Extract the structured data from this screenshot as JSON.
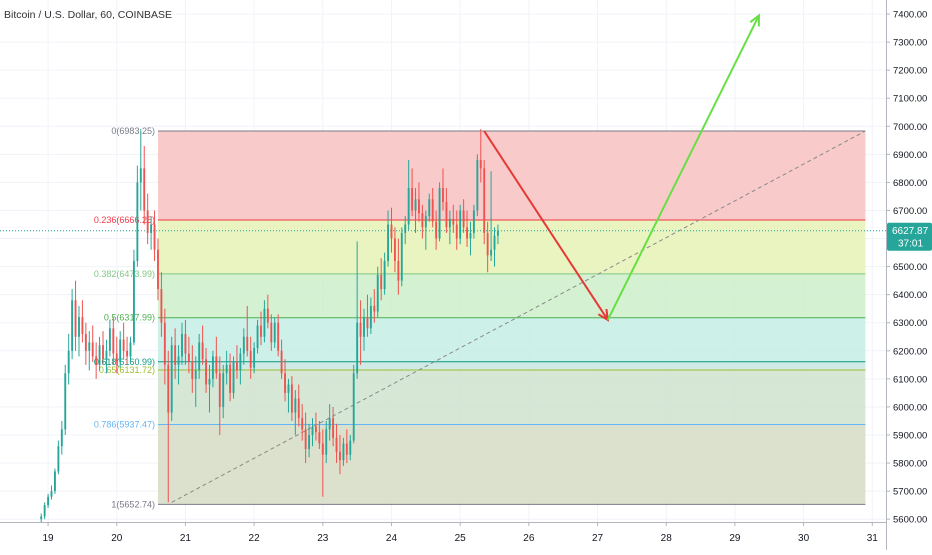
{
  "header": {
    "title": "Bitcoin / U.S. Dollar, 60, COINBASE"
  },
  "price_badge": {
    "value": "6627.87",
    "countdown": "37:01"
  },
  "chart_data": {
    "type": "candlestick",
    "title": "Bitcoin / U.S. Dollar, 60, COINBASE",
    "xlabel": "",
    "ylabel": "",
    "x_ticks": [
      "19",
      "20",
      "21",
      "22",
      "23",
      "24",
      "25",
      "26",
      "27",
      "28",
      "29",
      "30",
      "31"
    ],
    "y_ticks": [
      "5600.00",
      "5700.00",
      "5800.00",
      "5900.00",
      "6000.00",
      "6100.00",
      "6200.00",
      "6300.00",
      "6400.00",
      "6500.00",
      "6600.00",
      "6700.00",
      "6800.00",
      "6900.00",
      "7000.00",
      "7100.00",
      "7200.00",
      "7300.00",
      "7400.00"
    ],
    "ylim": [
      5590,
      7450
    ],
    "xlim": [
      18.3,
      31.2
    ],
    "current_price": 6627.87,
    "fib_start_x": 20.6,
    "fib_end_x": 30.9,
    "fib_levels": [
      {
        "label": "0(6983.25)",
        "value": 6983.25,
        "color": "#787b86"
      },
      {
        "label": "0.236(6666.25)",
        "value": 6666.25,
        "color": "#f23645"
      },
      {
        "label": "0.382(6473.99)",
        "value": 6473.99,
        "color": "#81c784"
      },
      {
        "label": "0.5(6317.99)",
        "value": 6317.99,
        "color": "#4caf50"
      },
      {
        "label": "0.618(6160.99)",
        "value": 6160.99,
        "color": "#089981"
      },
      {
        "label": "0.65(6131.72)",
        "value": 6131.72,
        "color": "#9bbf2e"
      },
      {
        "label": "0.786(5937.47)",
        "value": 5937.47,
        "color": "#64b5f6"
      },
      {
        "label": "1(5652.74)",
        "value": 5652.74,
        "color": "#787b86"
      }
    ],
    "fib_zone_fills": [
      "#f7c1c1",
      "#e6f2b5",
      "#cdeec9",
      "#c4eee4",
      "#c8e6e2",
      "#cfe3cf",
      "#d6dcc4"
    ],
    "candles": [
      [
        18.9,
        5600,
        5620,
        5580,
        5610
      ],
      [
        18.95,
        5610,
        5660,
        5600,
        5650
      ],
      [
        19.0,
        5650,
        5690,
        5640,
        5680
      ],
      [
        19.05,
        5680,
        5720,
        5670,
        5700
      ],
      [
        19.1,
        5700,
        5780,
        5690,
        5770
      ],
      [
        19.15,
        5770,
        5880,
        5760,
        5860
      ],
      [
        19.2,
        5860,
        5950,
        5830,
        5920
      ],
      [
        19.25,
        5920,
        6150,
        5900,
        6120
      ],
      [
        19.3,
        6120,
        6260,
        6080,
        6200
      ],
      [
        19.35,
        6200,
        6420,
        6170,
        6380
      ],
      [
        19.4,
        6380,
        6450,
        6200,
        6250
      ],
      [
        19.45,
        6250,
        6360,
        6180,
        6320
      ],
      [
        19.5,
        6320,
        6380,
        6230,
        6260
      ],
      [
        19.55,
        6260,
        6300,
        6150,
        6200
      ],
      [
        19.6,
        6200,
        6270,
        6130,
        6230
      ],
      [
        19.65,
        6230,
        6290,
        6160,
        6180
      ],
      [
        19.7,
        6180,
        6230,
        6100,
        6150
      ],
      [
        19.75,
        6150,
        6250,
        6130,
        6220
      ],
      [
        19.8,
        6220,
        6270,
        6150,
        6170
      ],
      [
        19.85,
        6170,
        6240,
        6120,
        6200
      ],
      [
        19.9,
        6200,
        6310,
        6180,
        6280
      ],
      [
        19.95,
        6280,
        6320,
        6150,
        6190
      ],
      [
        20.0,
        6190,
        6250,
        6120,
        6160
      ],
      [
        20.05,
        6160,
        6270,
        6140,
        6240
      ],
      [
        20.1,
        6240,
        6300,
        6170,
        6200
      ],
      [
        20.15,
        6200,
        6250,
        6150,
        6180
      ],
      [
        20.2,
        6180,
        6250,
        6160,
        6230
      ],
      [
        20.25,
        6230,
        6560,
        6220,
        6520
      ],
      [
        20.3,
        6520,
        6860,
        6500,
        6800
      ],
      [
        20.35,
        6800,
        6990,
        6700,
        6850
      ],
      [
        20.4,
        6850,
        6930,
        6650,
        6700
      ],
      [
        20.45,
        6700,
        6760,
        6580,
        6620
      ],
      [
        20.5,
        6620,
        6680,
        6560,
        6650
      ],
      [
        20.55,
        6650,
        6700,
        6520,
        6560
      ],
      [
        20.6,
        6560,
        6600,
        6380,
        6420
      ],
      [
        20.65,
        6420,
        6480,
        6250,
        6300
      ],
      [
        20.7,
        6300,
        6350,
        6080,
        6150
      ],
      [
        20.75,
        6150,
        6200,
        5660,
        5980
      ],
      [
        20.8,
        5980,
        6250,
        5950,
        6220
      ],
      [
        20.85,
        6220,
        6280,
        6100,
        6150
      ],
      [
        20.9,
        6150,
        6220,
        6080,
        6180
      ],
      [
        20.95,
        6180,
        6300,
        6150,
        6260
      ],
      [
        21.0,
        6260,
        6310,
        6150,
        6190
      ],
      [
        21.05,
        6190,
        6250,
        6120,
        6160
      ],
      [
        21.1,
        6160,
        6220,
        6050,
        6100
      ],
      [
        21.15,
        6100,
        6180,
        6000,
        6130
      ],
      [
        21.2,
        6130,
        6260,
        6100,
        6230
      ],
      [
        21.25,
        6230,
        6290,
        6150,
        6170
      ],
      [
        21.3,
        6170,
        6210,
        6050,
        6080
      ],
      [
        21.35,
        6080,
        6150,
        5980,
        6100
      ],
      [
        21.4,
        6100,
        6200,
        6070,
        6180
      ],
      [
        21.45,
        6180,
        6250,
        6100,
        6120
      ],
      [
        21.5,
        6120,
        6180,
        5900,
        6000
      ],
      [
        21.55,
        6000,
        6150,
        5960,
        6120
      ],
      [
        21.6,
        6120,
        6200,
        6080,
        6150
      ],
      [
        21.65,
        6150,
        6190,
        6020,
        6050
      ],
      [
        21.7,
        6050,
        6180,
        6030,
        6160
      ],
      [
        21.75,
        6160,
        6220,
        6100,
        6130
      ],
      [
        21.8,
        6130,
        6210,
        6080,
        6190
      ],
      [
        21.85,
        6190,
        6280,
        6150,
        6250
      ],
      [
        21.9,
        6250,
        6360,
        6180,
        6200
      ],
      [
        21.95,
        6200,
        6250,
        6100,
        6140
      ],
      [
        22.0,
        6140,
        6230,
        6120,
        6210
      ],
      [
        22.05,
        6210,
        6310,
        6190,
        6290
      ],
      [
        22.1,
        6290,
        6340,
        6220,
        6250
      ],
      [
        22.15,
        6250,
        6380,
        6230,
        6350
      ],
      [
        22.2,
        6350,
        6400,
        6280,
        6300
      ],
      [
        22.25,
        6300,
        6330,
        6200,
        6230
      ],
      [
        22.3,
        6230,
        6320,
        6210,
        6300
      ],
      [
        22.35,
        6300,
        6330,
        6180,
        6200
      ],
      [
        22.4,
        6200,
        6240,
        6100,
        6120
      ],
      [
        22.45,
        6120,
        6170,
        6020,
        6050
      ],
      [
        22.5,
        6050,
        6100,
        5980,
        6080
      ],
      [
        22.55,
        6080,
        6110,
        5950,
        5980
      ],
      [
        22.6,
        5980,
        6060,
        5900,
        6030
      ],
      [
        22.65,
        6030,
        6080,
        5930,
        5960
      ],
      [
        22.7,
        5960,
        6010,
        5880,
        5920
      ],
      [
        22.75,
        5920,
        5980,
        5800,
        5850
      ],
      [
        22.8,
        5850,
        5940,
        5820,
        5900
      ],
      [
        22.85,
        5900,
        5960,
        5860,
        5930
      ],
      [
        22.9,
        5930,
        5980,
        5880,
        5910
      ],
      [
        22.95,
        5910,
        5950,
        5850,
        5870
      ],
      [
        23.0,
        5870,
        5920,
        5680,
        5830
      ],
      [
        23.05,
        5830,
        5950,
        5800,
        5920
      ],
      [
        23.1,
        5920,
        6010,
        5880,
        5960
      ],
      [
        23.15,
        5960,
        6000,
        5860,
        5890
      ],
      [
        23.2,
        5890,
        5940,
        5800,
        5840
      ],
      [
        23.25,
        5840,
        5900,
        5760,
        5810
      ],
      [
        23.3,
        5810,
        5890,
        5790,
        5870
      ],
      [
        23.35,
        5870,
        5920,
        5800,
        5830
      ],
      [
        23.4,
        5830,
        5900,
        5810,
        5880
      ],
      [
        23.45,
        5880,
        6150,
        5870,
        6120
      ],
      [
        23.5,
        6120,
        6590,
        6100,
        6300
      ],
      [
        23.55,
        6300,
        6380,
        6150,
        6250
      ],
      [
        23.6,
        6250,
        6350,
        6200,
        6320
      ],
      [
        23.65,
        6320,
        6400,
        6250,
        6280
      ],
      [
        23.7,
        6280,
        6390,
        6260,
        6360
      ],
      [
        23.75,
        6360,
        6420,
        6300,
        6340
      ],
      [
        23.8,
        6340,
        6500,
        6320,
        6470
      ],
      [
        23.85,
        6470,
        6530,
        6380,
        6420
      ],
      [
        23.9,
        6420,
        6550,
        6400,
        6520
      ],
      [
        23.95,
        6520,
        6700,
        6500,
        6650
      ],
      [
        24.0,
        6650,
        6710,
        6550,
        6600
      ],
      [
        24.05,
        6600,
        6640,
        6480,
        6520
      ],
      [
        24.1,
        6520,
        6600,
        6400,
        6450
      ],
      [
        24.15,
        6450,
        6640,
        6430,
        6620
      ],
      [
        24.2,
        6620,
        6680,
        6580,
        6650
      ],
      [
        24.25,
        6650,
        6880,
        6630,
        6780
      ],
      [
        24.3,
        6780,
        6850,
        6680,
        6700
      ],
      [
        24.35,
        6700,
        6780,
        6620,
        6740
      ],
      [
        24.4,
        6740,
        6800,
        6660,
        6690
      ],
      [
        24.45,
        6690,
        6720,
        6600,
        6640
      ],
      [
        24.5,
        6640,
        6700,
        6560,
        6680
      ],
      [
        24.55,
        6680,
        6760,
        6660,
        6740
      ],
      [
        24.6,
        6740,
        6780,
        6640,
        6660
      ],
      [
        24.65,
        6660,
        6700,
        6560,
        6600
      ],
      [
        24.7,
        6600,
        6800,
        6590,
        6780
      ],
      [
        24.75,
        6780,
        6850,
        6700,
        6730
      ],
      [
        24.8,
        6730,
        6780,
        6620,
        6640
      ],
      [
        24.85,
        6640,
        6700,
        6580,
        6670
      ],
      [
        24.9,
        6670,
        6720,
        6620,
        6650
      ],
      [
        24.95,
        6650,
        6700,
        6560,
        6600
      ],
      [
        25.0,
        6600,
        6720,
        6580,
        6700
      ],
      [
        25.05,
        6700,
        6740,
        6620,
        6640
      ],
      [
        25.1,
        6640,
        6700,
        6570,
        6600
      ],
      [
        25.15,
        6600,
        6660,
        6540,
        6620
      ],
      [
        25.2,
        6620,
        6720,
        6600,
        6700
      ],
      [
        25.25,
        6700,
        6900,
        6680,
        6880
      ],
      [
        25.3,
        6880,
        6990,
        6800,
        6850
      ],
      [
        25.35,
        6850,
        6880,
        6580,
        6620
      ],
      [
        25.4,
        6620,
        6660,
        6480,
        6540
      ],
      [
        25.45,
        6540,
        6840,
        6520,
        6560
      ],
      [
        25.5,
        6560,
        6640,
        6500,
        6610
      ],
      [
        25.55,
        6610,
        6650,
        6580,
        6628
      ]
    ],
    "trend_line": {
      "from": [
        20.8,
        5660
      ],
      "to": [
        30.9,
        6983.25
      ]
    },
    "arrows": [
      {
        "color": "#e53935",
        "points": [
          [
            25.35,
            6983
          ],
          [
            27.15,
            6310
          ]
        ]
      },
      {
        "color": "#66e044",
        "points": [
          [
            27.15,
            6310
          ],
          [
            29.35,
            7395
          ]
        ]
      }
    ]
  }
}
